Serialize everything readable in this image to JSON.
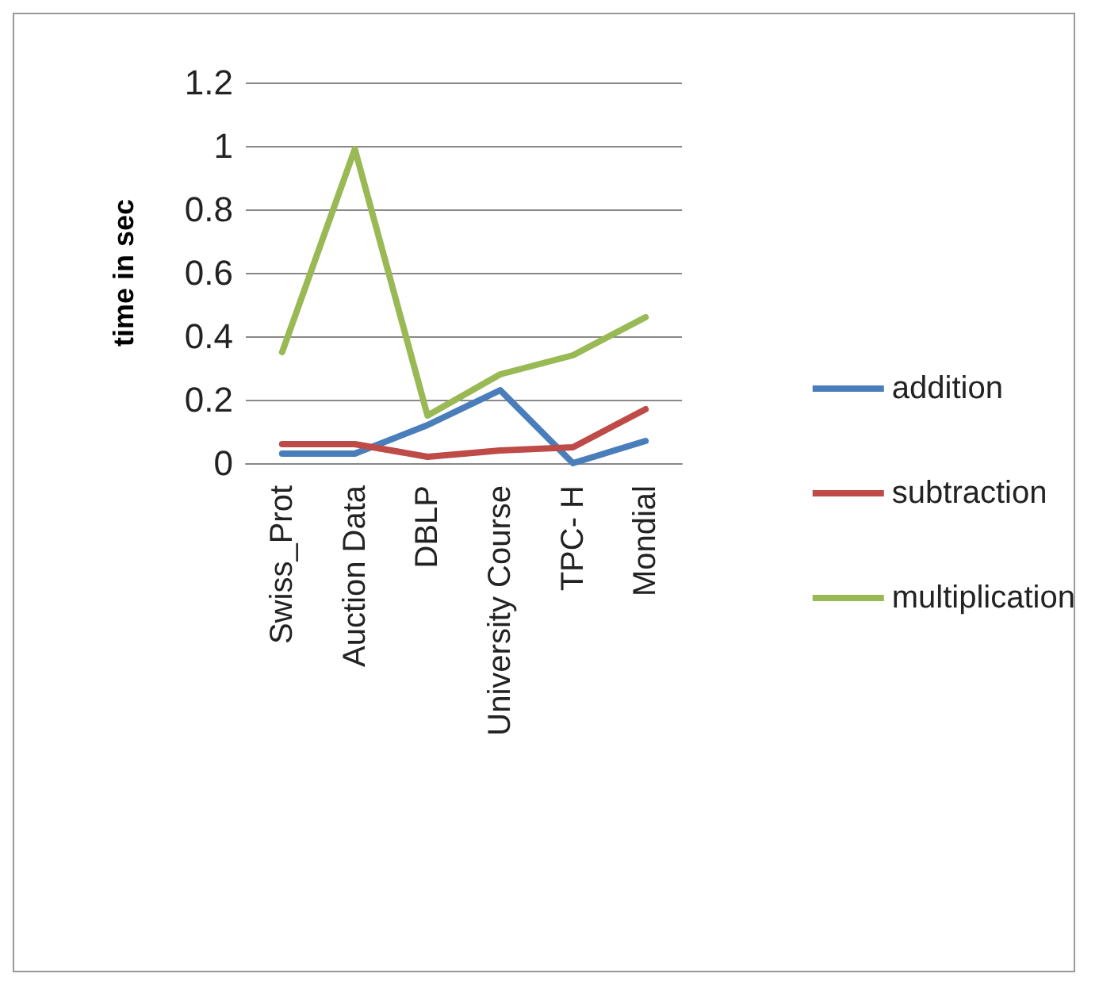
{
  "chart_data": {
    "type": "line",
    "ylabel": "time in sec",
    "categories": [
      "Swiss_Prot",
      "Auction Data",
      "DBLP",
      "University Course",
      "TPC- H",
      "Mondial"
    ],
    "series": [
      {
        "name": "addition",
        "color": "#4a7ebb",
        "values": [
          0.03,
          0.03,
          0.12,
          0.23,
          0.0,
          0.07
        ]
      },
      {
        "name": "subtraction",
        "color": "#be4b48",
        "values": [
          0.06,
          0.06,
          0.02,
          0.04,
          0.05,
          0.17
        ]
      },
      {
        "name": "multiplication",
        "color": "#98b954",
        "values": [
          0.35,
          0.99,
          0.15,
          0.28,
          0.34,
          0.46
        ]
      }
    ],
    "ylim": [
      0,
      1.2
    ],
    "yticks": [
      0,
      0.2,
      0.4,
      0.6,
      0.8,
      1,
      1.2
    ],
    "grid": "y",
    "legend": "right",
    "marker": "none",
    "line_style": "solid"
  }
}
